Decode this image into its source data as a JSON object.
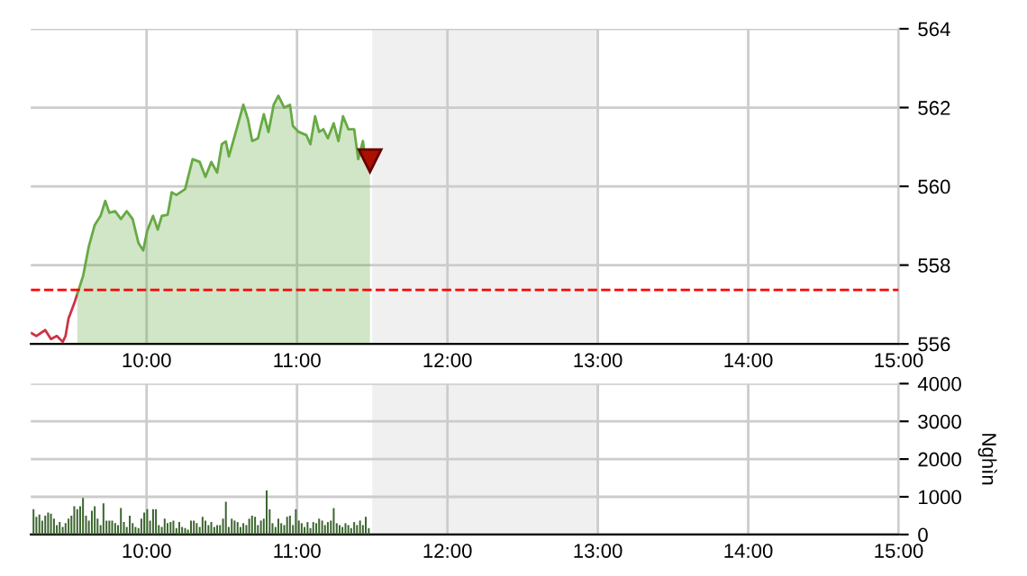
{
  "chart_data": [
    {
      "type": "area",
      "xlim": [
        9.23,
        15
      ],
      "ylim": [
        556,
        564
      ],
      "yticks": [
        556,
        558,
        560,
        562,
        564
      ],
      "xticks": [
        {
          "value": 10,
          "label": "10:00"
        },
        {
          "value": 11,
          "label": "11:00"
        },
        {
          "value": 12,
          "label": "12:00"
        },
        {
          "value": 13,
          "label": "13:00"
        },
        {
          "value": 14,
          "label": "14:00"
        },
        {
          "value": 15,
          "label": "15:00"
        }
      ],
      "grid": true,
      "legend": false,
      "ref_lines": [
        {
          "axis": "y",
          "value": 557.37,
          "color": "#ff0000",
          "line_style": "dashed"
        }
      ],
      "bands": [
        {
          "axis": "x",
          "from": 11.5,
          "to": 13,
          "color": "#f0f0f0"
        }
      ],
      "series": [
        {
          "type": "line",
          "color": "#cc3344",
          "x": [
            9.236,
            9.267,
            9.326,
            9.364,
            9.403,
            9.442,
            9.461,
            9.481,
            9.52,
            9.539
          ],
          "values": [
            556.27,
            556.2,
            556.35,
            556.12,
            556.2,
            556.05,
            556.2,
            556.65,
            557.04,
            557.27
          ]
        },
        {
          "type": "area",
          "color": "#66aa44",
          "x": [
            9.539,
            9.578,
            9.616,
            9.655,
            9.694,
            9.725,
            9.752,
            9.791,
            9.829,
            9.868,
            9.907,
            9.946,
            9.977,
            10.004,
            10.043,
            10.074,
            10.101,
            10.14,
            10.167,
            10.198,
            10.256,
            10.306,
            10.353,
            10.391,
            10.43,
            10.469,
            10.5,
            10.527,
            10.547,
            10.593,
            10.643,
            10.674,
            10.702,
            10.74,
            10.779,
            10.81,
            10.845,
            10.876,
            10.915,
            10.953,
            10.973,
            11.012,
            11.062,
            11.089,
            11.12,
            11.147,
            11.175,
            11.205,
            11.244,
            11.275,
            11.306,
            11.341,
            11.38,
            11.407,
            11.438,
            11.457,
            11.485
          ],
          "values": [
            557.27,
            557.73,
            558.48,
            559.02,
            559.25,
            559.63,
            559.33,
            559.37,
            559.17,
            559.37,
            559.17,
            558.56,
            558.37,
            558.87,
            559.25,
            558.9,
            559.25,
            559.28,
            559.85,
            559.78,
            559.93,
            560.69,
            560.62,
            560.24,
            560.62,
            560.35,
            561.07,
            561.14,
            560.76,
            561.38,
            562.07,
            561.7,
            561.15,
            561.22,
            561.83,
            561.38,
            562.07,
            562.3,
            562.0,
            562.07,
            561.53,
            561.38,
            561.3,
            561.07,
            561.78,
            561.38,
            561.45,
            561.22,
            561.6,
            561.15,
            561.78,
            561.45,
            561.45,
            560.69,
            561.15,
            560.62,
            560.65
          ]
        }
      ]
    },
    {
      "type": "bar",
      "xlim": [
        9.23,
        15
      ],
      "ylim": [
        0,
        4000
      ],
      "yticks": [
        0,
        1000,
        2000,
        3000,
        4000
      ],
      "ylabel": "Nghìn",
      "xticks": [
        {
          "value": 10,
          "label": "10:00"
        },
        {
          "value": 11,
          "label": "11:00"
        },
        {
          "value": 12,
          "label": "12:00"
        },
        {
          "value": 13,
          "label": "13:00"
        },
        {
          "value": 14,
          "label": "14:00"
        },
        {
          "value": 15,
          "label": "15:00"
        }
      ],
      "grid": true,
      "legend": false,
      "bands": [
        {
          "axis": "x",
          "from": 11.5,
          "to": 13,
          "color": "#f0f0f0"
        }
      ],
      "series": [
        {
          "color": "#3d6630",
          "x": [
            9.248,
            9.267,
            9.287,
            9.306,
            9.326,
            9.345,
            9.364,
            9.384,
            9.403,
            9.422,
            9.442,
            9.461,
            9.481,
            9.5,
            9.519,
            9.539,
            9.558,
            9.577,
            9.597,
            9.616,
            9.636,
            9.655,
            9.674,
            9.694,
            9.713,
            9.733,
            9.752,
            9.771,
            9.791,
            9.81,
            9.829,
            9.849,
            9.868,
            9.888,
            9.907,
            9.926,
            9.946,
            9.965,
            9.984,
            10.004,
            10.023,
            10.043,
            10.062,
            10.081,
            10.101,
            10.12,
            10.139,
            10.159,
            10.178,
            10.198,
            10.217,
            10.236,
            10.256,
            10.275,
            10.295,
            10.314,
            10.333,
            10.353,
            10.372,
            10.391,
            10.411,
            10.43,
            10.45,
            10.469,
            10.488,
            10.508,
            10.527,
            10.546,
            10.566,
            10.585,
            10.605,
            10.624,
            10.643,
            10.663,
            10.682,
            10.701,
            10.721,
            10.74,
            10.76,
            10.779,
            10.798,
            10.818,
            10.837,
            10.857,
            10.876,
            10.895,
            10.915,
            10.934,
            10.953,
            10.973,
            10.992,
            11.012,
            11.031,
            11.05,
            11.07,
            11.089,
            11.108,
            11.128,
            11.147,
            11.167,
            11.186,
            11.205,
            11.225,
            11.244,
            11.264,
            11.283,
            11.302,
            11.322,
            11.341,
            11.36,
            11.38,
            11.399,
            11.419,
            11.438,
            11.457,
            11.477
          ],
          "values": [
            670,
            470,
            530,
            370,
            500,
            580,
            550,
            420,
            250,
            330,
            200,
            300,
            420,
            500,
            750,
            670,
            750,
            970,
            500,
            370,
            630,
            750,
            420,
            250,
            830,
            370,
            370,
            370,
            300,
            250,
            700,
            330,
            200,
            500,
            300,
            200,
            170,
            420,
            580,
            670,
            370,
            670,
            670,
            250,
            200,
            420,
            300,
            330,
            370,
            170,
            330,
            200,
            170,
            130,
            370,
            370,
            300,
            200,
            470,
            370,
            250,
            330,
            200,
            250,
            250,
            420,
            870,
            200,
            420,
            370,
            330,
            200,
            300,
            250,
            420,
            500,
            470,
            250,
            370,
            420,
            1170,
            670,
            300,
            200,
            420,
            300,
            250,
            470,
            500,
            250,
            670,
            370,
            300,
            200,
            330,
            170,
            330,
            300,
            420,
            370,
            250,
            330,
            370,
            700,
            300,
            250,
            200,
            300,
            250,
            170,
            330,
            250,
            370,
            250,
            470,
            170
          ]
        }
      ]
    }
  ]
}
